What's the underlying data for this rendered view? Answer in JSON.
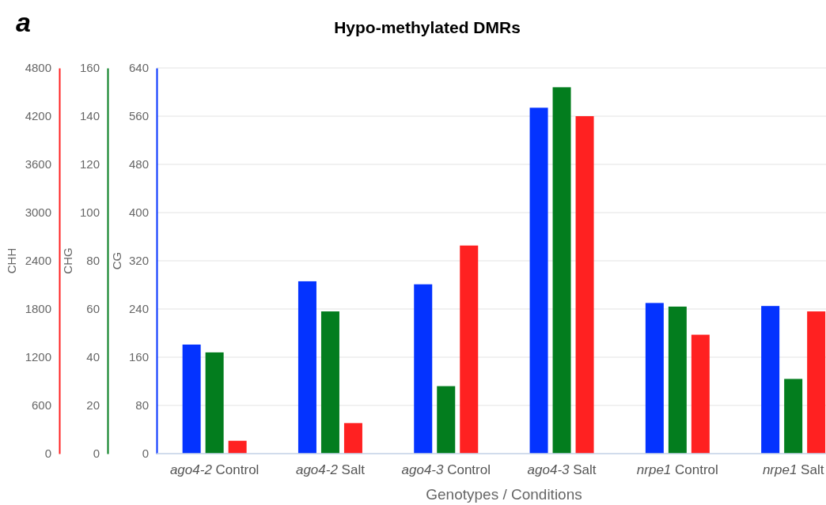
{
  "chart_data": {
    "type": "bar",
    "title": "Hypo-methylated DMRs",
    "xlabel": "Genotypes / Conditions",
    "ylabel": "CG",
    "y2label": "CHG",
    "y3label": "CHH",
    "annotations": [
      "a"
    ],
    "categories": [
      "ago4-2 Control",
      "ago4-2 Salt",
      "ago4-3 Control",
      "ago4-3 Salt",
      "nrpe1 Control",
      "nrpe1 Salt"
    ],
    "series": [
      {
        "color": "#0433ff",
        "values": [
          181,
          286,
          281,
          574,
          250,
          245
        ]
      },
      {
        "color": "#037d1e",
        "axis": "y2",
        "values": [
          42,
          59,
          28,
          152,
          61,
          31
        ]
      },
      {
        "color": "#ff2121",
        "axis": "y3",
        "values": [
          160,
          380,
          2590,
          4200,
          1480,
          1770
        ]
      }
    ],
    "ylim": [
      0,
      640
    ],
    "yticks": [
      0,
      80,
      160,
      240,
      320,
      400,
      480,
      560,
      640
    ],
    "y2lim": [
      0,
      160
    ],
    "y2ticks": [
      0,
      20,
      40,
      60,
      80,
      100,
      120,
      140,
      160
    ],
    "y3lim": [
      0,
      4800
    ],
    "y3ticks": [
      0,
      600,
      1200,
      1800,
      2400,
      3000,
      3600,
      4200,
      4800
    ],
    "grid": "y"
  }
}
